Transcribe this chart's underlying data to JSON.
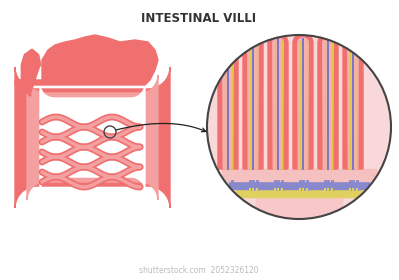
{
  "title": "INTESTINAL VILLI",
  "title_fontsize": 8.5,
  "title_color": "#333333",
  "bg_color": "#ffffff",
  "intestine_outer_color": "#f07070",
  "intestine_inner_color": "#f5a0a0",
  "intestine_fill_color": "#fce0e0",
  "villi_outer_color": "#f07070",
  "villi_inner_color": "#f5b0b0",
  "blue_line_color": "#7070cc",
  "yellow_line_color": "#e0c840",
  "circle_outline_color": "#444444",
  "arrow_color": "#222222",
  "zoom_bg_color": "#f8d8d8",
  "base_pink": "#f5c0c0",
  "base_blue": "#8888cc",
  "base_yellow": "#e0d060",
  "base_bottom": "#f8c8c8",
  "shutterstock_text": "shutterstock.com  2052326120",
  "shutterstock_color": "#bbbbbb",
  "shutterstock_fontsize": 5.5
}
